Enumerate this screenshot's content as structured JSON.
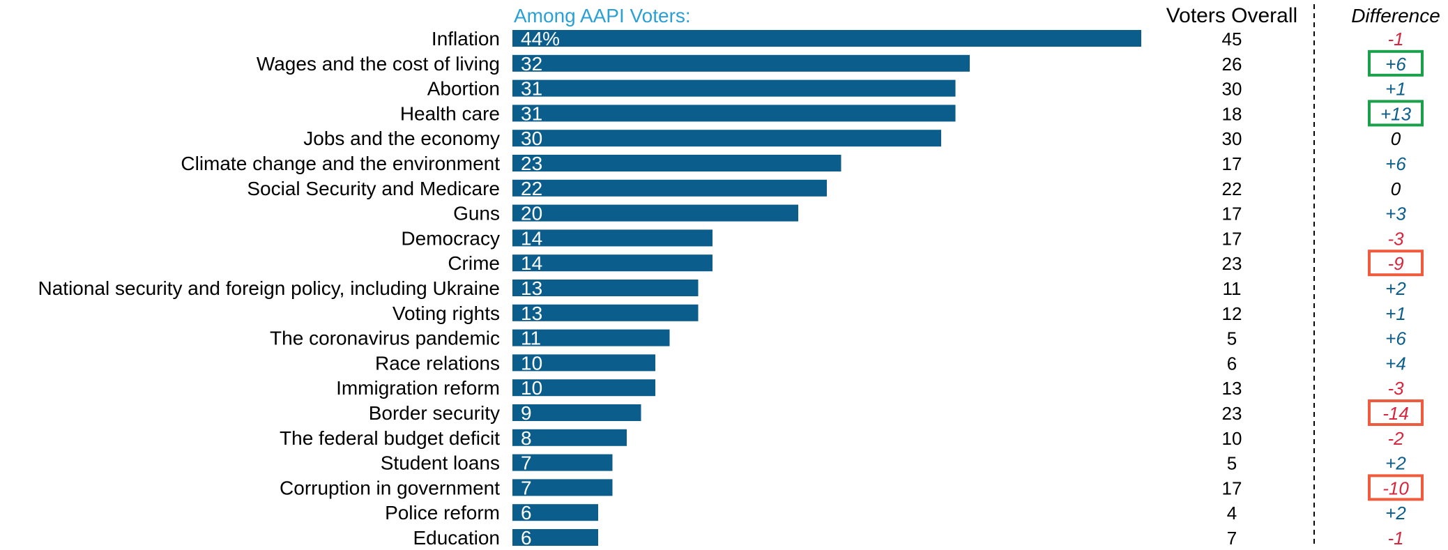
{
  "chart_data": {
    "type": "bar",
    "orientation": "horizontal",
    "title": "Among AAPI Voters:",
    "overall_header": "Voters Overall",
    "difference_header": "Difference",
    "categories": [
      "Inflation",
      "Wages and the cost of living",
      "Abortion",
      "Health care",
      "Jobs and the economy",
      "Climate change and the environment",
      "Social Security and Medicare",
      "Guns",
      "Democracy",
      "Crime",
      "National security and foreign policy, including Ukraine",
      "Voting rights",
      "The coronavirus pandemic",
      "Race relations",
      "Immigration reform",
      "Border security",
      "The federal budget deficit",
      "Student loans",
      "Corruption in government",
      "Police reform",
      "Education"
    ],
    "values": [
      44,
      32,
      31,
      31,
      30,
      23,
      22,
      20,
      14,
      14,
      13,
      13,
      11,
      10,
      10,
      9,
      8,
      7,
      7,
      6,
      6
    ],
    "value_labels": [
      "44%",
      "32",
      "31",
      "31",
      "30",
      "23",
      "22",
      "20",
      "14",
      "14",
      "13",
      "13",
      "11",
      "10",
      "10",
      "9",
      "8",
      "7",
      "7",
      "6",
      "6"
    ],
    "overall": [
      "45",
      "26",
      "30",
      "18",
      "30",
      "17",
      "22",
      "17",
      "17",
      "23",
      "11",
      "12",
      "5",
      "6",
      "13",
      "23",
      "10",
      "5",
      "17",
      "4",
      "7"
    ],
    "difference": [
      "-1",
      "+6",
      "+1",
      "+13",
      "0",
      "+6",
      "0",
      "+3",
      "-3",
      "-9",
      "+2",
      "+1",
      "+6",
      "+4",
      "-3",
      "-14",
      "-2",
      "+2",
      "-10",
      "+2",
      "-1"
    ],
    "highlighted": [
      false,
      true,
      false,
      true,
      false,
      false,
      false,
      false,
      false,
      true,
      false,
      false,
      false,
      false,
      false,
      true,
      false,
      false,
      true,
      false,
      false
    ],
    "xlim": [
      0,
      45
    ],
    "colors": {
      "bar": "#0b5e8c",
      "title": "#2aa0d4",
      "positive": "#0b5e8c",
      "negative": "#d7263d",
      "zero": "#000000",
      "box_positive": "#1aa04a",
      "box_negative": "#ef5b3c"
    }
  }
}
